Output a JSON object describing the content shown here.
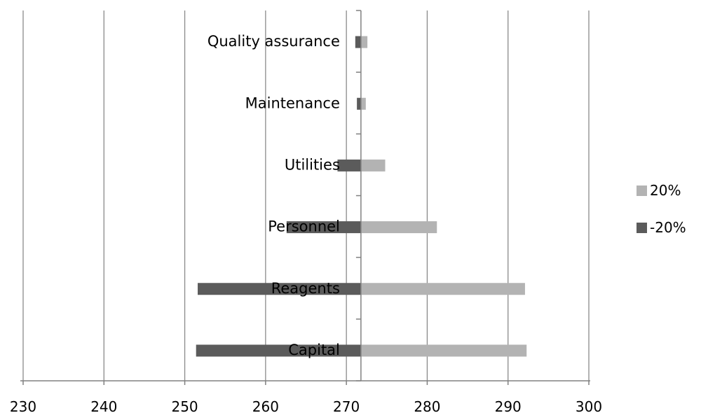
{
  "chart_data": {
    "type": "bar",
    "orientation": "horizontal",
    "title": "",
    "xlabel": "",
    "ylabel": "",
    "baseline": 271.8,
    "xlim": [
      230,
      300
    ],
    "x_ticks": [
      "230",
      "240",
      "250",
      "260",
      "270",
      "280",
      "290",
      "300"
    ],
    "x_tick_values": [
      230,
      240,
      250,
      260,
      270,
      280,
      290,
      300
    ],
    "grid": "vertical",
    "legend_position": "right",
    "categories": [
      "Quality assurance",
      "Maintenance",
      "Utilities",
      "Personnel",
      "Reagents",
      "Capital"
    ],
    "series": [
      {
        "name": "20%",
        "values": [
          272.6,
          272.4,
          274.8,
          281.2,
          292.1,
          292.3
        ],
        "color": "#b3b3b3"
      },
      {
        "name": "-20%",
        "values": [
          271.1,
          271.3,
          268.9,
          262.6,
          251.6,
          251.4
        ],
        "color": "#5b5b5b"
      }
    ]
  }
}
